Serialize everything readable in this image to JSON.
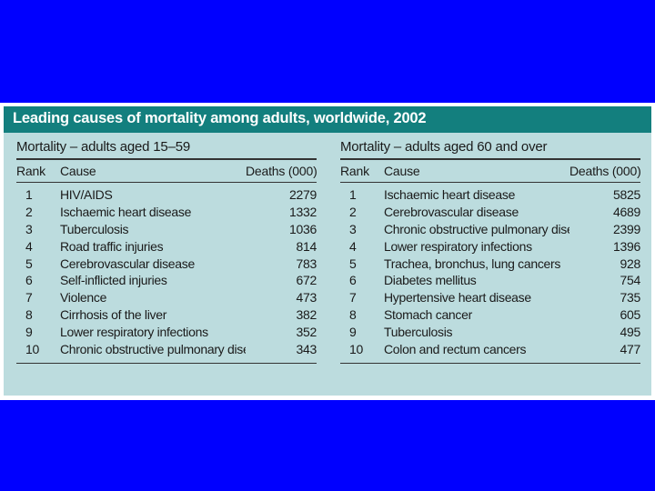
{
  "title": "Leading causes of mortality among adults, worldwide, 2002",
  "left_table": {
    "title": "Mortality – adults aged 15–59",
    "headers": {
      "rank": "Rank",
      "cause": "Cause",
      "deaths": "Deaths (000)"
    },
    "rows": [
      {
        "rank": "1",
        "cause": "HIV/AIDS",
        "deaths": "2279"
      },
      {
        "rank": "2",
        "cause": "Ischaemic heart disease",
        "deaths": "1332"
      },
      {
        "rank": "3",
        "cause": "Tuberculosis",
        "deaths": "1036"
      },
      {
        "rank": "4",
        "cause": "Road traffic injuries",
        "deaths": "814"
      },
      {
        "rank": "5",
        "cause": "Cerebrovascular disease",
        "deaths": "783"
      },
      {
        "rank": "6",
        "cause": "Self-inflicted injuries",
        "deaths": "672"
      },
      {
        "rank": "7",
        "cause": "Violence",
        "deaths": "473"
      },
      {
        "rank": "8",
        "cause": "Cirrhosis of the liver",
        "deaths": "382"
      },
      {
        "rank": "9",
        "cause": "Lower respiratory infections",
        "deaths": "352"
      },
      {
        "rank": "10",
        "cause": "Chronic obstructive pulmonary disease",
        "deaths": "343"
      }
    ]
  },
  "right_table": {
    "title": "Mortality – adults aged 60 and over",
    "headers": {
      "rank": "Rank",
      "cause": "Cause",
      "deaths": "Deaths (000)"
    },
    "rows": [
      {
        "rank": "1",
        "cause": "Ischaemic heart disease",
        "deaths": "5825"
      },
      {
        "rank": "2",
        "cause": "Cerebrovascular disease",
        "deaths": "4689"
      },
      {
        "rank": "3",
        "cause": "Chronic obstructive pulmonary disease",
        "deaths": "2399"
      },
      {
        "rank": "4",
        "cause": "Lower respiratory infections",
        "deaths": "1396"
      },
      {
        "rank": "5",
        "cause": "Trachea, bronchus, lung cancers",
        "deaths": "928"
      },
      {
        "rank": "6",
        "cause": "Diabetes mellitus",
        "deaths": "754"
      },
      {
        "rank": "7",
        "cause": "Hypertensive heart disease",
        "deaths": "735"
      },
      {
        "rank": "8",
        "cause": "Stomach cancer",
        "deaths": "605"
      },
      {
        "rank": "9",
        "cause": "Tuberculosis",
        "deaths": "495"
      },
      {
        "rank": "10",
        "cause": "Colon and rectum cancers",
        "deaths": "477"
      }
    ]
  },
  "colors": {
    "slide_background": "#0000ff",
    "panel_background": "#bcdcde",
    "title_bar": "#137f7e",
    "title_text": "#ffffff",
    "table_text": "#1a1a1a"
  }
}
